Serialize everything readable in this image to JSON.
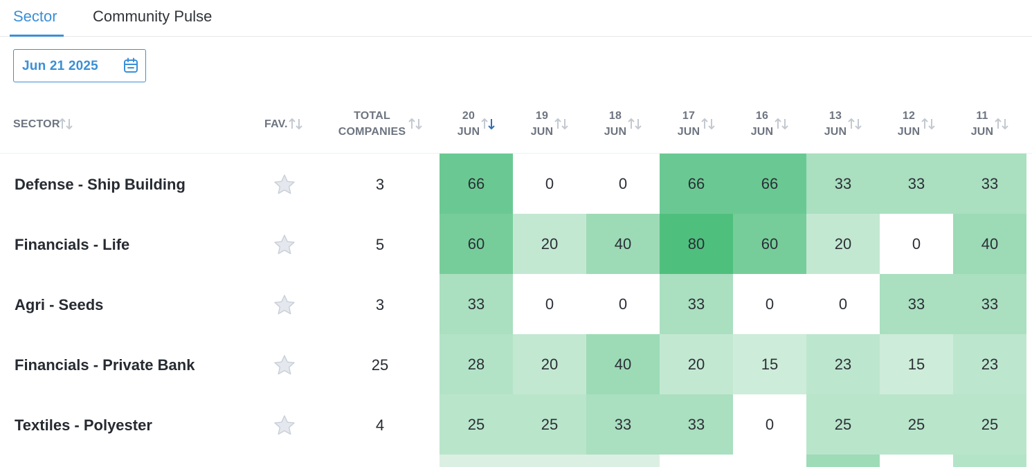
{
  "tabs": [
    {
      "label": "Sector",
      "active": true
    },
    {
      "label": "Community Pulse",
      "active": false
    }
  ],
  "date_picker": {
    "value": "Jun 21 2025",
    "icon": "calendar-icon"
  },
  "columns": {
    "sector": "SECTOR",
    "fav": "FAV.",
    "total_line1": "TOTAL",
    "total_line2": "COMPANIES",
    "dates": [
      {
        "day": "20",
        "month": "JUN",
        "sorted": true
      },
      {
        "day": "19",
        "month": "JUN",
        "sorted": false
      },
      {
        "day": "18",
        "month": "JUN",
        "sorted": false
      },
      {
        "day": "17",
        "month": "JUN",
        "sorted": false
      },
      {
        "day": "16",
        "month": "JUN",
        "sorted": false
      },
      {
        "day": "13",
        "month": "JUN",
        "sorted": false
      },
      {
        "day": "12",
        "month": "JUN",
        "sorted": false
      },
      {
        "day": "11",
        "month": "JUN",
        "sorted": false
      }
    ]
  },
  "rows": [
    {
      "sector": "Defense - Ship Building",
      "total": "3",
      "values": [
        66,
        0,
        0,
        66,
        66,
        33,
        33,
        33
      ]
    },
    {
      "sector": "Financials - Life",
      "total": "5",
      "values": [
        60,
        20,
        40,
        80,
        60,
        20,
        0,
        40
      ]
    },
    {
      "sector": "Agri - Seeds",
      "total": "3",
      "values": [
        33,
        0,
        0,
        33,
        0,
        0,
        33,
        33
      ]
    },
    {
      "sector": "Financials - Private Bank",
      "total": "25",
      "values": [
        28,
        20,
        40,
        20,
        15,
        23,
        15,
        23
      ]
    },
    {
      "sector": "Textiles - Polyester",
      "total": "4",
      "values": [
        25,
        25,
        33,
        33,
        0,
        25,
        25,
        25
      ]
    }
  ],
  "icons": {
    "favorite": "star-icon",
    "sort": "sort-arrows-icon"
  },
  "colors": {
    "accent": "#3a8fd6",
    "heat_base": "#ffffff",
    "heat_max": "#4fbf7e"
  }
}
